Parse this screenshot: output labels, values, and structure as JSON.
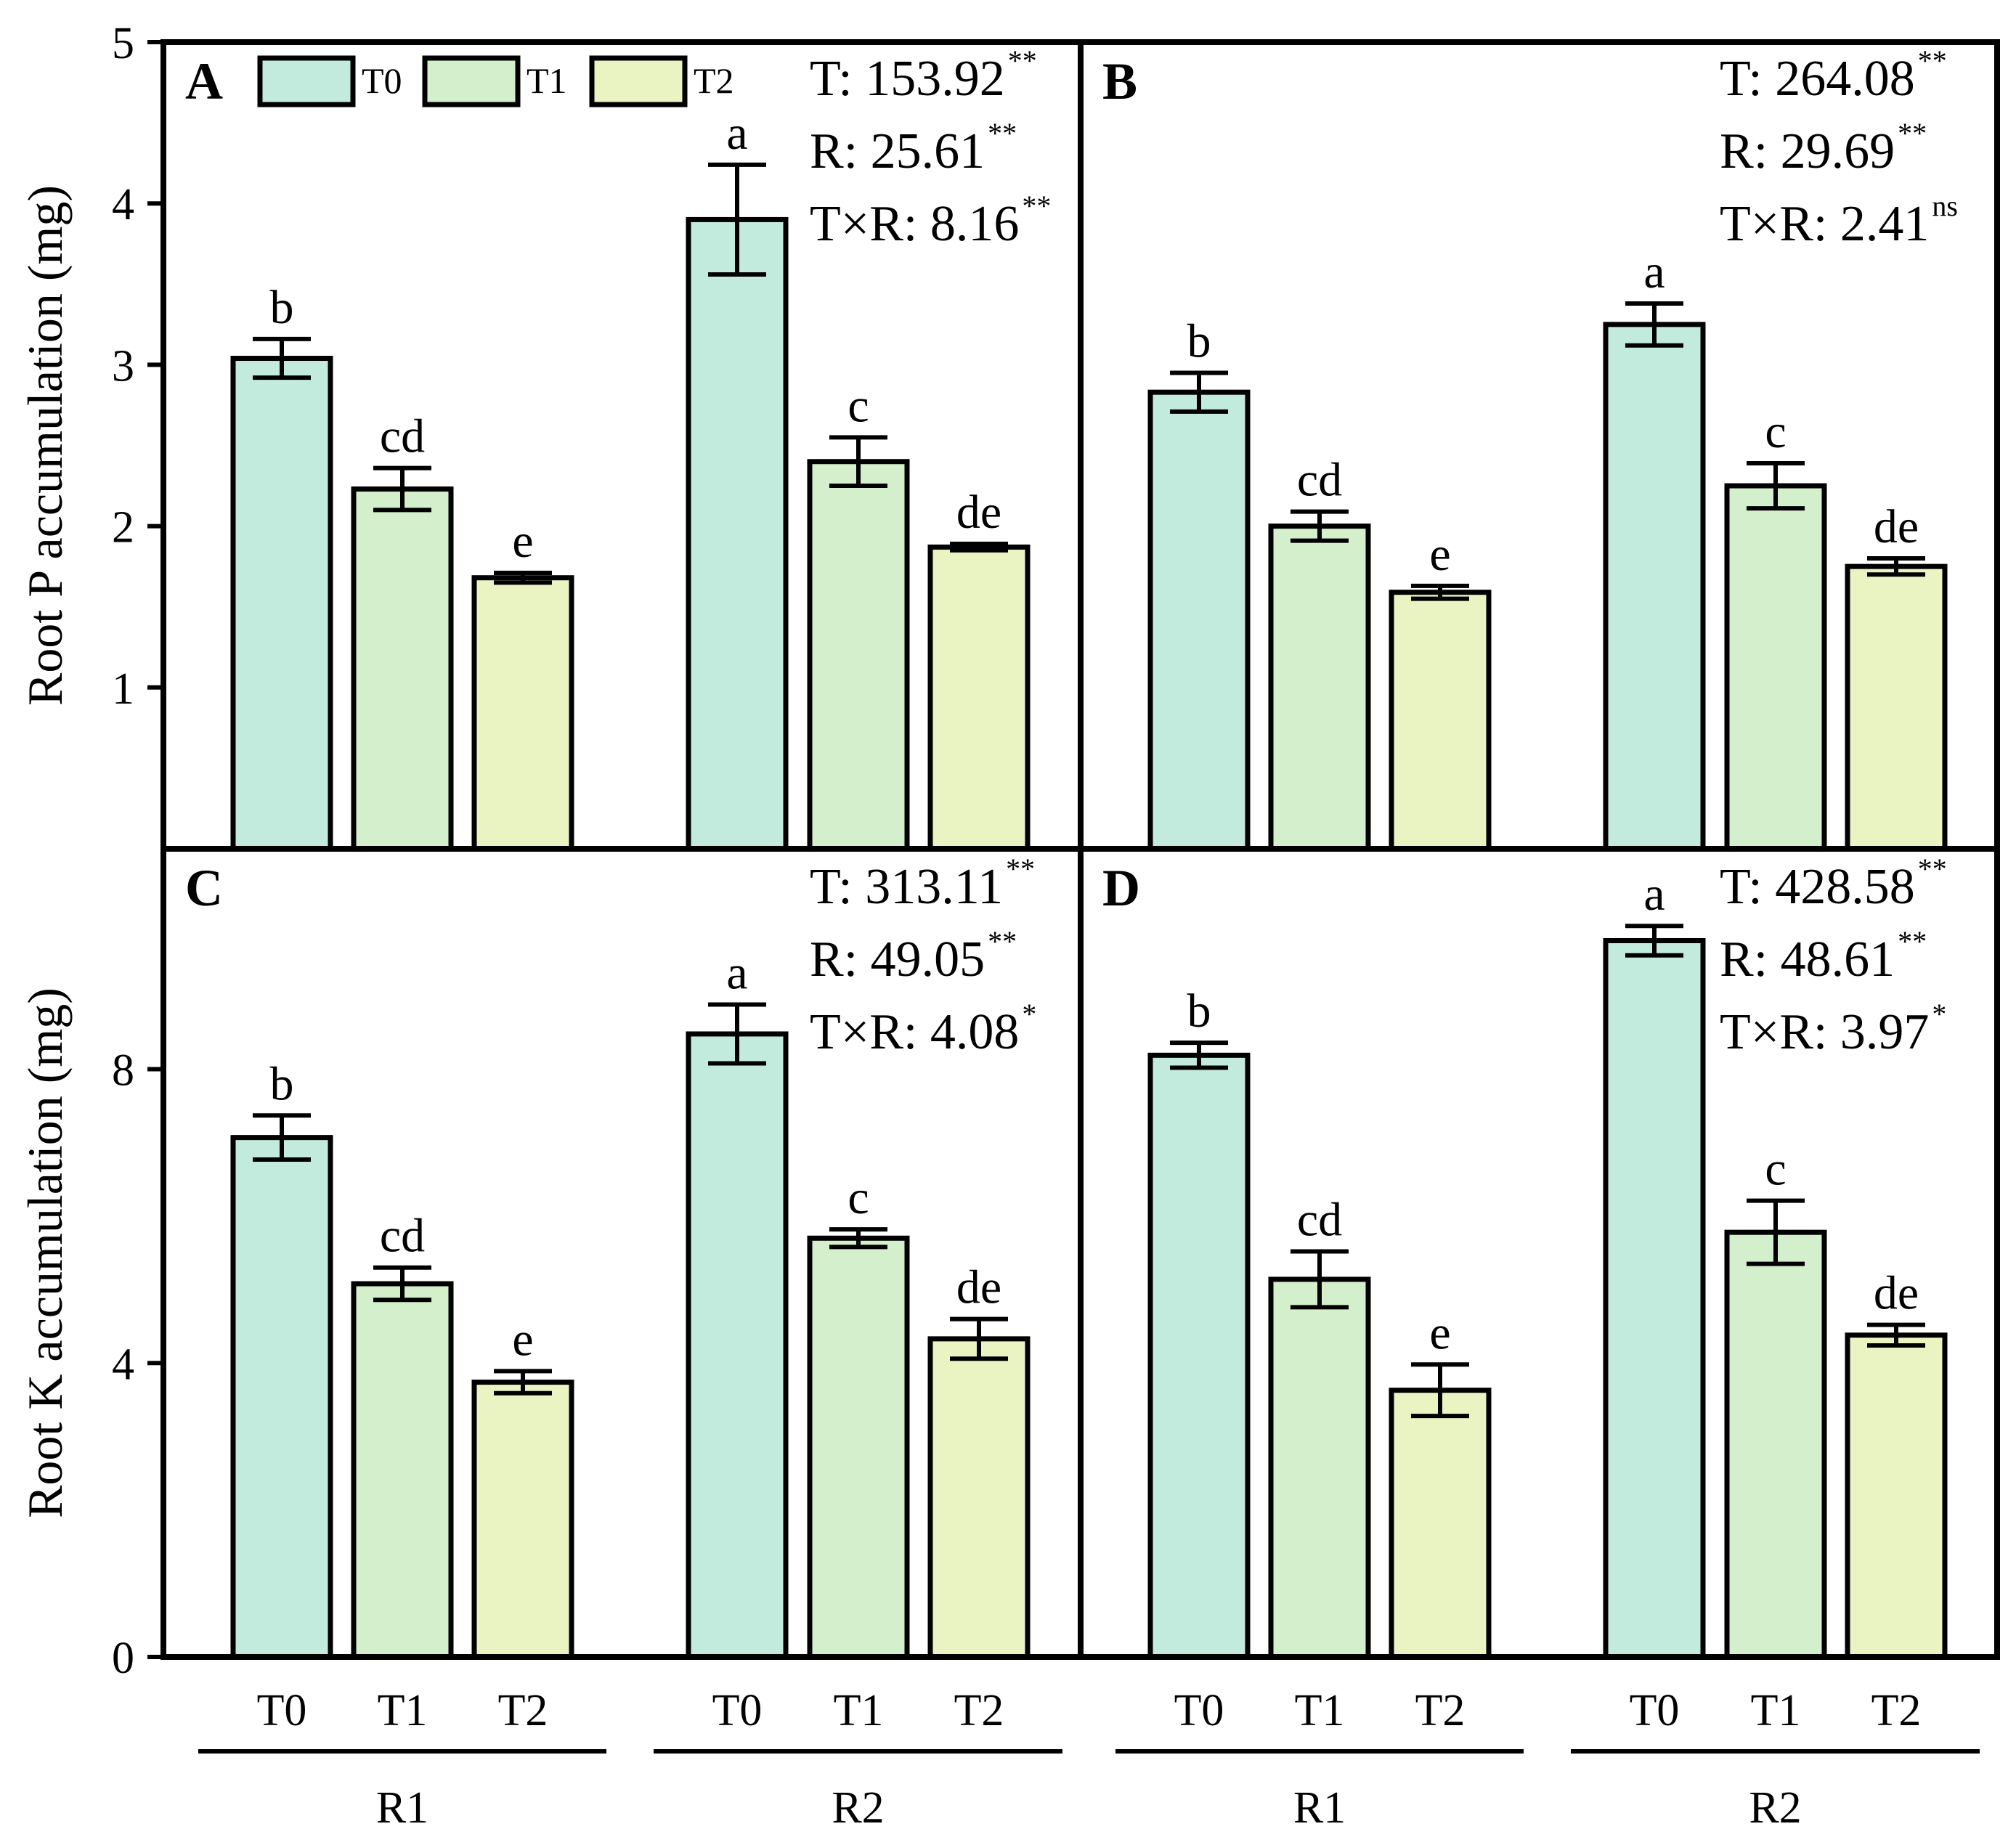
{
  "figure": {
    "groups": [
      "R1",
      "R2"
    ],
    "treatments": [
      "T0",
      "T1",
      "T2"
    ],
    "colors": {
      "T0": "#c3ebdd",
      "T1": "#d3efcc",
      "T2": "#eaf4c2",
      "stroke": "#000000"
    },
    "legend": [
      "T0",
      "T1",
      "T2"
    ]
  },
  "chart_data": [
    {
      "panel": "A",
      "type": "bar",
      "ylabel": "Root P accumulation (mg)",
      "ylim": [
        0,
        5
      ],
      "yticks": [
        1,
        2,
        3,
        4,
        5
      ],
      "x_group": "R1",
      "series": [
        {
          "name": "T0",
          "values": [
            3.04,
            3.9
          ]
        },
        {
          "name": "T1",
          "values": [
            2.23,
            2.4
          ]
        },
        {
          "name": "T2",
          "values": [
            1.68,
            1.87
          ]
        }
      ],
      "categories": [
        "R1",
        "R2"
      ],
      "errors": {
        "T0": [
          0.12,
          0.34
        ],
        "T1": [
          0.13,
          0.15
        ],
        "T2": [
          0.03,
          0.02
        ]
      },
      "letters": {
        "T0": [
          "b",
          "a"
        ],
        "T1": [
          "cd",
          "c"
        ],
        "T2": [
          "e",
          "de"
        ]
      },
      "stats": [
        {
          "label": "T: 153.92",
          "sig": "**"
        },
        {
          "label": "R: 25.61",
          "sig": "**"
        },
        {
          "label": "T×R: 8.16",
          "sig": "**"
        }
      ]
    },
    {
      "panel": "B",
      "type": "bar",
      "ylabel": "",
      "ylim": [
        0,
        5
      ],
      "yticks": [],
      "x_group": "R1",
      "series": [
        {
          "name": "T0",
          "values": [
            2.83,
            3.25
          ]
        },
        {
          "name": "T1",
          "values": [
            2.0,
            2.25
          ]
        },
        {
          "name": "T2",
          "values": [
            1.59,
            1.75
          ]
        }
      ],
      "categories": [
        "R1",
        "R2"
      ],
      "errors": {
        "T0": [
          0.12,
          0.13
        ],
        "T1": [
          0.09,
          0.14
        ],
        "T2": [
          0.04,
          0.05
        ]
      },
      "letters": {
        "T0": [
          "b",
          "a"
        ],
        "T1": [
          "cd",
          "c"
        ],
        "T2": [
          "e",
          "de"
        ]
      },
      "stats": [
        {
          "label": "T: 264.08",
          "sig": "**"
        },
        {
          "label": "R: 29.69",
          "sig": "**"
        },
        {
          "label": "T×R: 2.41",
          "sig": "ns"
        }
      ]
    },
    {
      "panel": "C",
      "type": "bar",
      "ylabel": "Root K accumulation (mg)",
      "ylim": [
        0,
        11
      ],
      "yticks": [
        0,
        4,
        8
      ],
      "x_group": "R1",
      "series": [
        {
          "name": "T0",
          "values": [
            7.07,
            8.48
          ]
        },
        {
          "name": "T1",
          "values": [
            5.08,
            5.7
          ]
        },
        {
          "name": "T2",
          "values": [
            3.74,
            4.33
          ]
        }
      ],
      "categories": [
        "R1",
        "R2"
      ],
      "errors": {
        "T0": [
          0.3,
          0.4
        ],
        "T1": [
          0.22,
          0.12
        ],
        "T2": [
          0.15,
          0.27
        ]
      },
      "letters": {
        "T0": [
          "b",
          "a"
        ],
        "T1": [
          "cd",
          "c"
        ],
        "T2": [
          "e",
          "de"
        ]
      },
      "stats": [
        {
          "label": "T: 313.11",
          "sig": "**"
        },
        {
          "label": "R: 49.05",
          "sig": "**"
        },
        {
          "label": "T×R: 4.08",
          "sig": "*"
        }
      ]
    },
    {
      "panel": "D",
      "type": "bar",
      "ylabel": "",
      "ylim": [
        0,
        11
      ],
      "yticks": [],
      "x_group": "R1",
      "series": [
        {
          "name": "T0",
          "values": [
            8.19,
            9.75
          ]
        },
        {
          "name": "T1",
          "values": [
            5.14,
            5.78
          ]
        },
        {
          "name": "T2",
          "values": [
            3.63,
            4.38
          ]
        }
      ],
      "categories": [
        "R1",
        "R2"
      ],
      "errors": {
        "T0": [
          0.17,
          0.2
        ],
        "T1": [
          0.38,
          0.43
        ],
        "T2": [
          0.35,
          0.14
        ]
      },
      "letters": {
        "T0": [
          "b",
          "a"
        ],
        "T1": [
          "cd",
          "c"
        ],
        "T2": [
          "e",
          "de"
        ]
      },
      "stats": [
        {
          "label": "T: 428.58",
          "sig": "**"
        },
        {
          "label": "R: 48.61",
          "sig": "**"
        },
        {
          "label": "T×R: 3.97",
          "sig": "*"
        }
      ]
    }
  ]
}
